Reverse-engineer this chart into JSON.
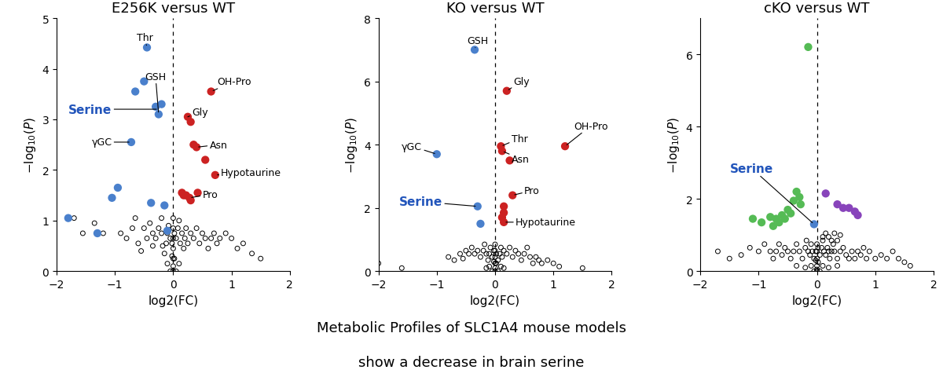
{
  "title_fontsize": 13,
  "axis_label_fontsize": 11,
  "tick_fontsize": 10,
  "caption_line1": "Metabolic Profiles of SLC1A4 mouse models",
  "caption_line2": "show a decrease in brain serine",
  "caption_fontsize": 13,
  "panel1": {
    "title": "E256K versus WT",
    "xlim": [
      -2,
      2
    ],
    "ylim": [
      0,
      5
    ],
    "yticks": [
      0,
      1,
      2,
      3,
      4,
      5
    ],
    "blue_points": [
      [
        -0.3,
        3.25
      ],
      [
        -0.25,
        3.1
      ],
      [
        -0.2,
        3.3
      ],
      [
        -0.45,
        4.42
      ],
      [
        -0.5,
        3.75
      ],
      [
        -0.65,
        3.55
      ],
      [
        -0.72,
        2.55
      ],
      [
        -0.95,
        1.65
      ],
      [
        -1.05,
        1.45
      ],
      [
        -0.38,
        1.35
      ],
      [
        -0.15,
        1.3
      ],
      [
        -0.1,
        0.8
      ],
      [
        -1.3,
        0.75
      ],
      [
        -1.8,
        1.05
      ]
    ],
    "red_points": [
      [
        0.65,
        3.55
      ],
      [
        0.25,
        3.05
      ],
      [
        0.3,
        2.95
      ],
      [
        0.35,
        2.5
      ],
      [
        0.4,
        2.45
      ],
      [
        0.55,
        2.2
      ],
      [
        0.72,
        1.9
      ],
      [
        0.15,
        1.55
      ],
      [
        0.18,
        1.5
      ],
      [
        0.22,
        1.5
      ],
      [
        0.28,
        1.45
      ],
      [
        0.3,
        1.4
      ],
      [
        0.42,
        1.55
      ]
    ],
    "background_points": [
      [
        -1.7,
        1.05
      ],
      [
        -1.55,
        0.75
      ],
      [
        -1.35,
        0.95
      ],
      [
        -1.2,
        0.75
      ],
      [
        -0.9,
        0.75
      ],
      [
        -0.8,
        0.65
      ],
      [
        -0.7,
        0.85
      ],
      [
        -0.65,
        1.05
      ],
      [
        -0.6,
        0.55
      ],
      [
        -0.55,
        0.4
      ],
      [
        -0.5,
        0.85
      ],
      [
        -0.45,
        0.65
      ],
      [
        -0.4,
        0.95
      ],
      [
        -0.35,
        0.75
      ],
      [
        -0.35,
        0.5
      ],
      [
        -0.3,
        0.65
      ],
      [
        -0.25,
        0.85
      ],
      [
        -0.2,
        1.05
      ],
      [
        -0.2,
        0.75
      ],
      [
        -0.18,
        0.5
      ],
      [
        -0.15,
        0.35
      ],
      [
        -0.12,
        0.55
      ],
      [
        -0.1,
        0.75
      ],
      [
        -0.08,
        0.9
      ],
      [
        -0.05,
        0.65
      ],
      [
        -0.02,
        0.55
      ],
      [
        0.0,
        1.05
      ],
      [
        0.0,
        0.85
      ],
      [
        0.0,
        0.65
      ],
      [
        0.0,
        0.45
      ],
      [
        0.0,
        0.25
      ],
      [
        0.0,
        0.1
      ],
      [
        0.02,
        0.75
      ],
      [
        0.05,
        0.65
      ],
      [
        0.08,
        0.85
      ],
      [
        0.1,
        1.0
      ],
      [
        0.12,
        0.55
      ],
      [
        0.15,
        0.75
      ],
      [
        0.18,
        0.45
      ],
      [
        0.2,
        0.65
      ],
      [
        0.22,
        0.85
      ],
      [
        0.25,
        0.55
      ],
      [
        0.3,
        0.75
      ],
      [
        0.35,
        0.65
      ],
      [
        0.4,
        0.85
      ],
      [
        0.45,
        0.55
      ],
      [
        0.5,
        0.75
      ],
      [
        0.55,
        0.65
      ],
      [
        0.6,
        0.45
      ],
      [
        0.65,
        0.65
      ],
      [
        0.7,
        0.75
      ],
      [
        0.75,
        0.55
      ],
      [
        0.8,
        0.65
      ],
      [
        0.9,
        0.75
      ],
      [
        1.0,
        0.65
      ],
      [
        1.1,
        0.45
      ],
      [
        1.2,
        0.55
      ],
      [
        1.35,
        0.35
      ],
      [
        1.5,
        0.25
      ],
      [
        -0.05,
        0.0
      ],
      [
        0.0,
        0.0
      ],
      [
        0.05,
        0.0
      ],
      [
        -0.1,
        0.15
      ],
      [
        0.1,
        0.15
      ],
      [
        0.02,
        0.25
      ],
      [
        -0.02,
        0.3
      ]
    ],
    "labels": {
      "Thr": [
        -0.45,
        4.42,
        -0.35,
        4.62,
        "right"
      ],
      "GSH": [
        -0.25,
        3.1,
        -0.12,
        3.85,
        "right"
      ],
      "Serine": [
        -0.25,
        3.2,
        -1.05,
        3.2,
        "right"
      ],
      "γGC": [
        -0.72,
        2.55,
        -1.05,
        2.55,
        "right"
      ],
      "OH-Pro": [
        0.65,
        3.55,
        0.75,
        3.75,
        "left"
      ],
      "Gly": [
        0.25,
        3.05,
        0.32,
        3.15,
        "left"
      ],
      "Asn": [
        0.4,
        2.45,
        0.62,
        2.5,
        "left"
      ],
      "Hypotaurine": [
        0.72,
        1.9,
        0.82,
        1.95,
        "left"
      ],
      "Pro": [
        0.28,
        1.45,
        0.5,
        1.52,
        "left"
      ]
    },
    "serine_label_color": "#2255bb",
    "serine_point": [
      -0.25,
      3.2
    ]
  },
  "panel2": {
    "title": "KO versus WT",
    "xlim": [
      -2,
      2
    ],
    "ylim": [
      0,
      8
    ],
    "yticks": [
      0,
      2,
      4,
      6,
      8
    ],
    "blue_points": [
      [
        -0.35,
        7.0
      ],
      [
        -1.0,
        3.7
      ],
      [
        -0.3,
        2.05
      ],
      [
        -0.25,
        1.5
      ]
    ],
    "red_points": [
      [
        0.2,
        5.7
      ],
      [
        0.1,
        3.95
      ],
      [
        0.12,
        3.8
      ],
      [
        0.25,
        3.5
      ],
      [
        0.15,
        2.05
      ],
      [
        0.15,
        1.85
      ],
      [
        0.12,
        1.7
      ],
      [
        0.3,
        2.4
      ],
      [
        0.15,
        1.55
      ],
      [
        1.2,
        3.95
      ]
    ],
    "background_points": [
      [
        -2.0,
        0.25
      ],
      [
        -1.6,
        0.1
      ],
      [
        -0.8,
        0.45
      ],
      [
        -0.7,
        0.35
      ],
      [
        -0.6,
        0.55
      ],
      [
        -0.55,
        0.4
      ],
      [
        -0.5,
        0.65
      ],
      [
        -0.45,
        0.55
      ],
      [
        -0.4,
        0.75
      ],
      [
        -0.35,
        0.55
      ],
      [
        -0.3,
        0.65
      ],
      [
        -0.25,
        0.45
      ],
      [
        -0.2,
        0.65
      ],
      [
        -0.18,
        0.85
      ],
      [
        -0.15,
        0.55
      ],
      [
        -0.12,
        0.35
      ],
      [
        -0.1,
        0.55
      ],
      [
        -0.08,
        0.75
      ],
      [
        -0.05,
        0.45
      ],
      [
        -0.02,
        0.65
      ],
      [
        0.0,
        0.85
      ],
      [
        0.0,
        0.65
      ],
      [
        0.0,
        0.45
      ],
      [
        0.0,
        0.25
      ],
      [
        0.0,
        0.1
      ],
      [
        0.02,
        0.55
      ],
      [
        0.05,
        0.35
      ],
      [
        0.08,
        0.55
      ],
      [
        0.1,
        0.75
      ],
      [
        0.12,
        0.45
      ],
      [
        0.15,
        0.65
      ],
      [
        0.2,
        0.55
      ],
      [
        0.25,
        0.75
      ],
      [
        0.3,
        0.45
      ],
      [
        0.35,
        0.65
      ],
      [
        0.4,
        0.55
      ],
      [
        0.45,
        0.35
      ],
      [
        0.5,
        0.55
      ],
      [
        0.55,
        0.75
      ],
      [
        0.6,
        0.45
      ],
      [
        0.65,
        0.25
      ],
      [
        0.7,
        0.45
      ],
      [
        0.75,
        0.35
      ],
      [
        0.8,
        0.25
      ],
      [
        0.9,
        0.35
      ],
      [
        1.0,
        0.25
      ],
      [
        1.1,
        0.15
      ],
      [
        1.5,
        0.1
      ],
      [
        -0.05,
        0.0
      ],
      [
        0.0,
        0.0
      ],
      [
        0.05,
        0.0
      ],
      [
        -0.1,
        0.15
      ],
      [
        0.1,
        0.15
      ],
      [
        0.02,
        0.25
      ],
      [
        -0.02,
        0.3
      ],
      [
        -0.15,
        0.1
      ],
      [
        0.15,
        0.1
      ]
    ],
    "labels": {
      "GSH": [
        -0.35,
        7.0,
        -0.12,
        7.3,
        "right"
      ],
      "Gly": [
        0.2,
        5.7,
        0.32,
        6.0,
        "left"
      ],
      "γGC": [
        -1.0,
        3.7,
        -1.25,
        3.95,
        "right"
      ],
      "Thr": [
        0.1,
        3.95,
        0.28,
        4.2,
        "left"
      ],
      "Asn": [
        0.12,
        3.8,
        0.28,
        3.55,
        "left"
      ],
      "OH-Pro": [
        1.2,
        3.95,
        1.35,
        4.6,
        "left"
      ],
      "Pro": [
        0.3,
        2.4,
        0.5,
        2.55,
        "left"
      ],
      "Hypotaurine": [
        0.15,
        1.55,
        0.35,
        1.55,
        "left"
      ],
      "Serine": [
        -0.3,
        2.05,
        -0.9,
        2.2,
        "right"
      ]
    },
    "serine_label_color": "#2255bb",
    "serine_point": [
      -0.3,
      2.05
    ]
  },
  "panel3": {
    "title": "cKO versus WT",
    "xlim": [
      -2,
      2
    ],
    "ylim": [
      0,
      7
    ],
    "yticks": [
      0,
      2,
      4,
      6
    ],
    "green_points": [
      [
        -0.15,
        6.2
      ],
      [
        -0.35,
        2.2
      ],
      [
        -0.3,
        2.05
      ],
      [
        -0.28,
        1.85
      ],
      [
        -0.4,
        1.95
      ],
      [
        -0.5,
        1.7
      ],
      [
        -0.45,
        1.6
      ],
      [
        -0.55,
        1.45
      ],
      [
        -0.6,
        1.55
      ],
      [
        -0.65,
        1.35
      ],
      [
        -0.7,
        1.45
      ],
      [
        -0.75,
        1.25
      ],
      [
        -0.8,
        1.5
      ],
      [
        -0.95,
        1.35
      ],
      [
        -1.1,
        1.45
      ]
    ],
    "purple_points": [
      [
        0.15,
        2.15
      ],
      [
        0.35,
        1.85
      ],
      [
        0.45,
        1.75
      ],
      [
        0.55,
        1.75
      ],
      [
        0.65,
        1.65
      ],
      [
        0.7,
        1.55
      ]
    ],
    "blue_points": [
      [
        -0.05,
        1.3
      ]
    ],
    "background_points": [
      [
        -1.7,
        0.55
      ],
      [
        -1.5,
        0.35
      ],
      [
        -1.3,
        0.45
      ],
      [
        -1.15,
        0.65
      ],
      [
        -1.0,
        0.55
      ],
      [
        -0.9,
        0.75
      ],
      [
        -0.8,
        0.55
      ],
      [
        -0.75,
        0.35
      ],
      [
        -0.7,
        0.55
      ],
      [
        -0.65,
        0.75
      ],
      [
        -0.6,
        0.45
      ],
      [
        -0.55,
        0.65
      ],
      [
        -0.5,
        0.55
      ],
      [
        -0.45,
        0.35
      ],
      [
        -0.4,
        0.55
      ],
      [
        -0.35,
        0.75
      ],
      [
        -0.3,
        0.55
      ],
      [
        -0.25,
        0.35
      ],
      [
        -0.2,
        0.65
      ],
      [
        -0.18,
        0.85
      ],
      [
        -0.15,
        0.55
      ],
      [
        -0.12,
        0.45
      ],
      [
        -0.1,
        0.75
      ],
      [
        -0.08,
        0.55
      ],
      [
        -0.05,
        0.35
      ],
      [
        -0.02,
        0.55
      ],
      [
        0.0,
        0.75
      ],
      [
        0.0,
        0.55
      ],
      [
        0.0,
        0.35
      ],
      [
        0.0,
        0.15
      ],
      [
        0.0,
        0.05
      ],
      [
        0.02,
        0.65
      ],
      [
        0.05,
        0.45
      ],
      [
        0.08,
        0.65
      ],
      [
        0.1,
        0.85
      ],
      [
        0.12,
        0.55
      ],
      [
        0.15,
        0.45
      ],
      [
        0.18,
        0.65
      ],
      [
        0.2,
        0.55
      ],
      [
        0.22,
        0.35
      ],
      [
        0.25,
        0.55
      ],
      [
        0.28,
        0.75
      ],
      [
        0.3,
        0.55
      ],
      [
        0.35,
        0.35
      ],
      [
        0.4,
        0.55
      ],
      [
        0.45,
        0.65
      ],
      [
        0.5,
        0.45
      ],
      [
        0.55,
        0.35
      ],
      [
        0.6,
        0.55
      ],
      [
        0.65,
        0.35
      ],
      [
        0.7,
        0.55
      ],
      [
        0.75,
        0.45
      ],
      [
        0.8,
        0.65
      ],
      [
        0.85,
        0.35
      ],
      [
        0.9,
        0.55
      ],
      [
        1.0,
        0.35
      ],
      [
        1.1,
        0.45
      ],
      [
        1.2,
        0.35
      ],
      [
        1.3,
        0.55
      ],
      [
        1.4,
        0.35
      ],
      [
        1.5,
        0.25
      ],
      [
        1.6,
        0.15
      ],
      [
        -0.05,
        0.0
      ],
      [
        0.0,
        0.0
      ],
      [
        0.05,
        0.0
      ],
      [
        -0.1,
        0.15
      ],
      [
        0.1,
        0.15
      ],
      [
        0.02,
        0.25
      ],
      [
        -0.02,
        0.3
      ],
      [
        -0.35,
        0.15
      ],
      [
        0.35,
        0.15
      ],
      [
        -0.2,
        0.1
      ],
      [
        0.2,
        0.1
      ],
      [
        0.1,
        0.95
      ],
      [
        0.15,
        1.05
      ],
      [
        0.2,
        0.95
      ],
      [
        0.25,
        0.85
      ],
      [
        0.3,
        1.05
      ],
      [
        0.35,
        0.85
      ],
      [
        0.4,
        1.0
      ]
    ],
    "labels": {
      "Serine": [
        -0.05,
        1.3,
        -0.75,
        2.85,
        "right"
      ]
    },
    "serine_label_color": "#2255bb",
    "serine_point": [
      -0.05,
      1.3
    ]
  },
  "blue_color": "#4a80cc",
  "red_color": "#cc2222",
  "green_color": "#55bb55",
  "purple_color": "#8844bb",
  "bg_color": "#ffffff",
  "marker_size": 55,
  "marker_size_bg": 18
}
